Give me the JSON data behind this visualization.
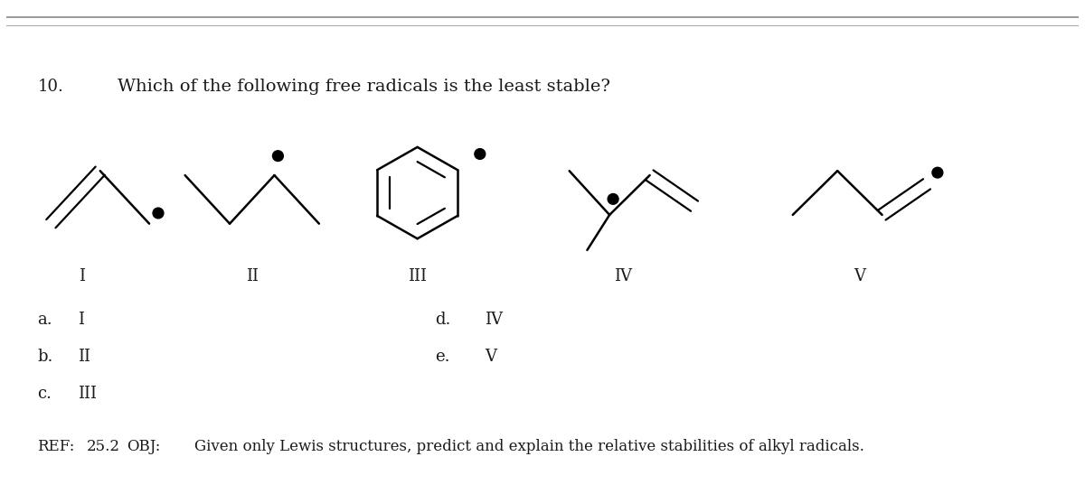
{
  "question_number": "10.",
  "question_text": "Which of the following free radicals is the least stable?",
  "roman_numerals": [
    "I",
    "II",
    "III",
    "IV",
    "V"
  ],
  "answer_left": [
    [
      "a.",
      "I"
    ],
    [
      "b.",
      "II"
    ],
    [
      "c.",
      "III"
    ]
  ],
  "answer_right": [
    [
      "d.",
      "IV"
    ],
    [
      "e.",
      "V"
    ]
  ],
  "ref_label": "REF:",
  "ref_num": "25.2",
  "ref_obj": "OBJ:",
  "ref_body": "Given only Lewis structures, predict and explain the relative stabilities of alkyl radicals.",
  "bg_color": "#ffffff",
  "text_color": "#1a1a1a",
  "body_fontsize": 13,
  "small_fontsize": 12
}
